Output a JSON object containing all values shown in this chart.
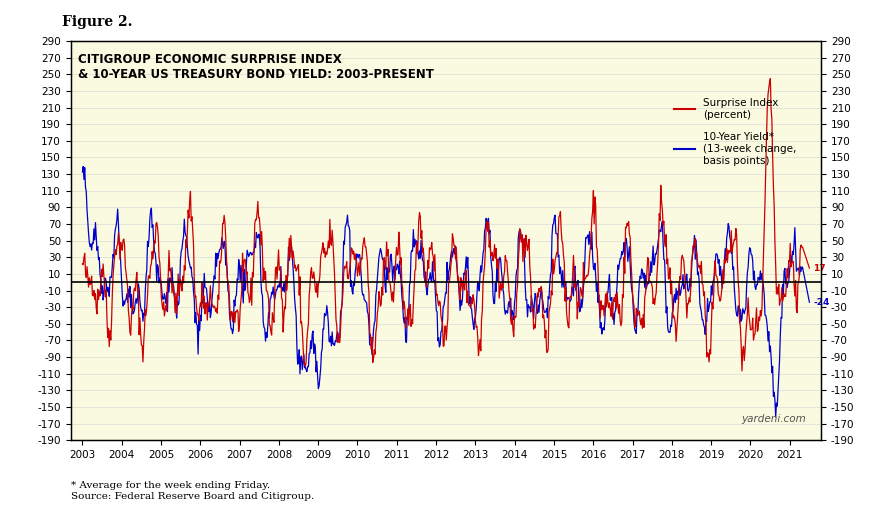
{
  "title_figure": "Figure 2.",
  "title_main": "CITIGROUP ECONOMIC SURPRISE INDEX\n& 10-YEAR US TREASURY BOND YIELD: 2003-PRESENT",
  "legend_line1": "Surprise Index\n(percent)",
  "legend_line2": "10-Year Yield*\n(13-week change,\nbasis points)",
  "footnote": "* Average for the week ending Friday.\nSource: Federal Reserve Board and Citigroup.",
  "watermark": "yardeni.com",
  "ylim": [
    -190,
    290
  ],
  "yticks": [
    -190,
    -170,
    -150,
    -130,
    -110,
    -90,
    -70,
    -50,
    -30,
    -10,
    10,
    30,
    50,
    70,
    90,
    110,
    130,
    150,
    170,
    190,
    210,
    230,
    250,
    270,
    290
  ],
  "bg_color": "#FAFAE0",
  "red_color": "#CC0000",
  "blue_color": "#0000CC",
  "xlabel_years": [
    "2003",
    "2004",
    "2005",
    "2006",
    "2007",
    "2008",
    "2009",
    "2010",
    "2011",
    "2012",
    "2013",
    "2014",
    "2015",
    "2016",
    "2017",
    "2018",
    "2019",
    "2020",
    "2021"
  ],
  "end_labels_red": "17",
  "end_labels_blue": "-24"
}
